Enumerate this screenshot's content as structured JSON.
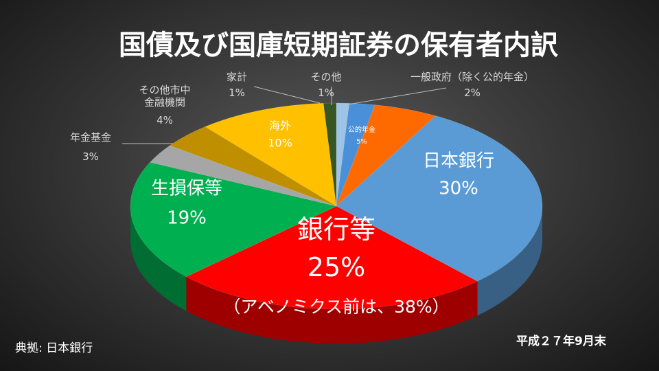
{
  "chart_data": {
    "type": "pie",
    "title": "国債及び国庫短期証券の保有者内訳",
    "categories": [
      "その他",
      "一般政府（除く公的年金）",
      "公的年金",
      "日本銀行",
      "銀行等",
      "生損保等",
      "年金基金",
      "その他市中\n金融機関",
      "海外",
      "家計"
    ],
    "values": [
      1,
      2,
      5,
      30,
      25,
      19,
      3,
      4,
      10,
      1
    ],
    "value_labels": [
      "1%",
      "2%",
      "5%",
      "30%",
      "25%",
      "19%",
      "3%",
      "4%",
      "10%",
      "1%"
    ],
    "colors": [
      "#9dc3e6",
      "#4a90d9",
      "#ff6a00",
      "#5b9bd5",
      "#ff0000",
      "#00b050",
      "#a6a6a6",
      "#bf8f00",
      "#ffc000",
      "#375623"
    ],
    "annotations": [
      "（アベノミクス前は、38%）",
      "典拠: 日本銀行",
      "平成２７年9月末"
    ]
  }
}
